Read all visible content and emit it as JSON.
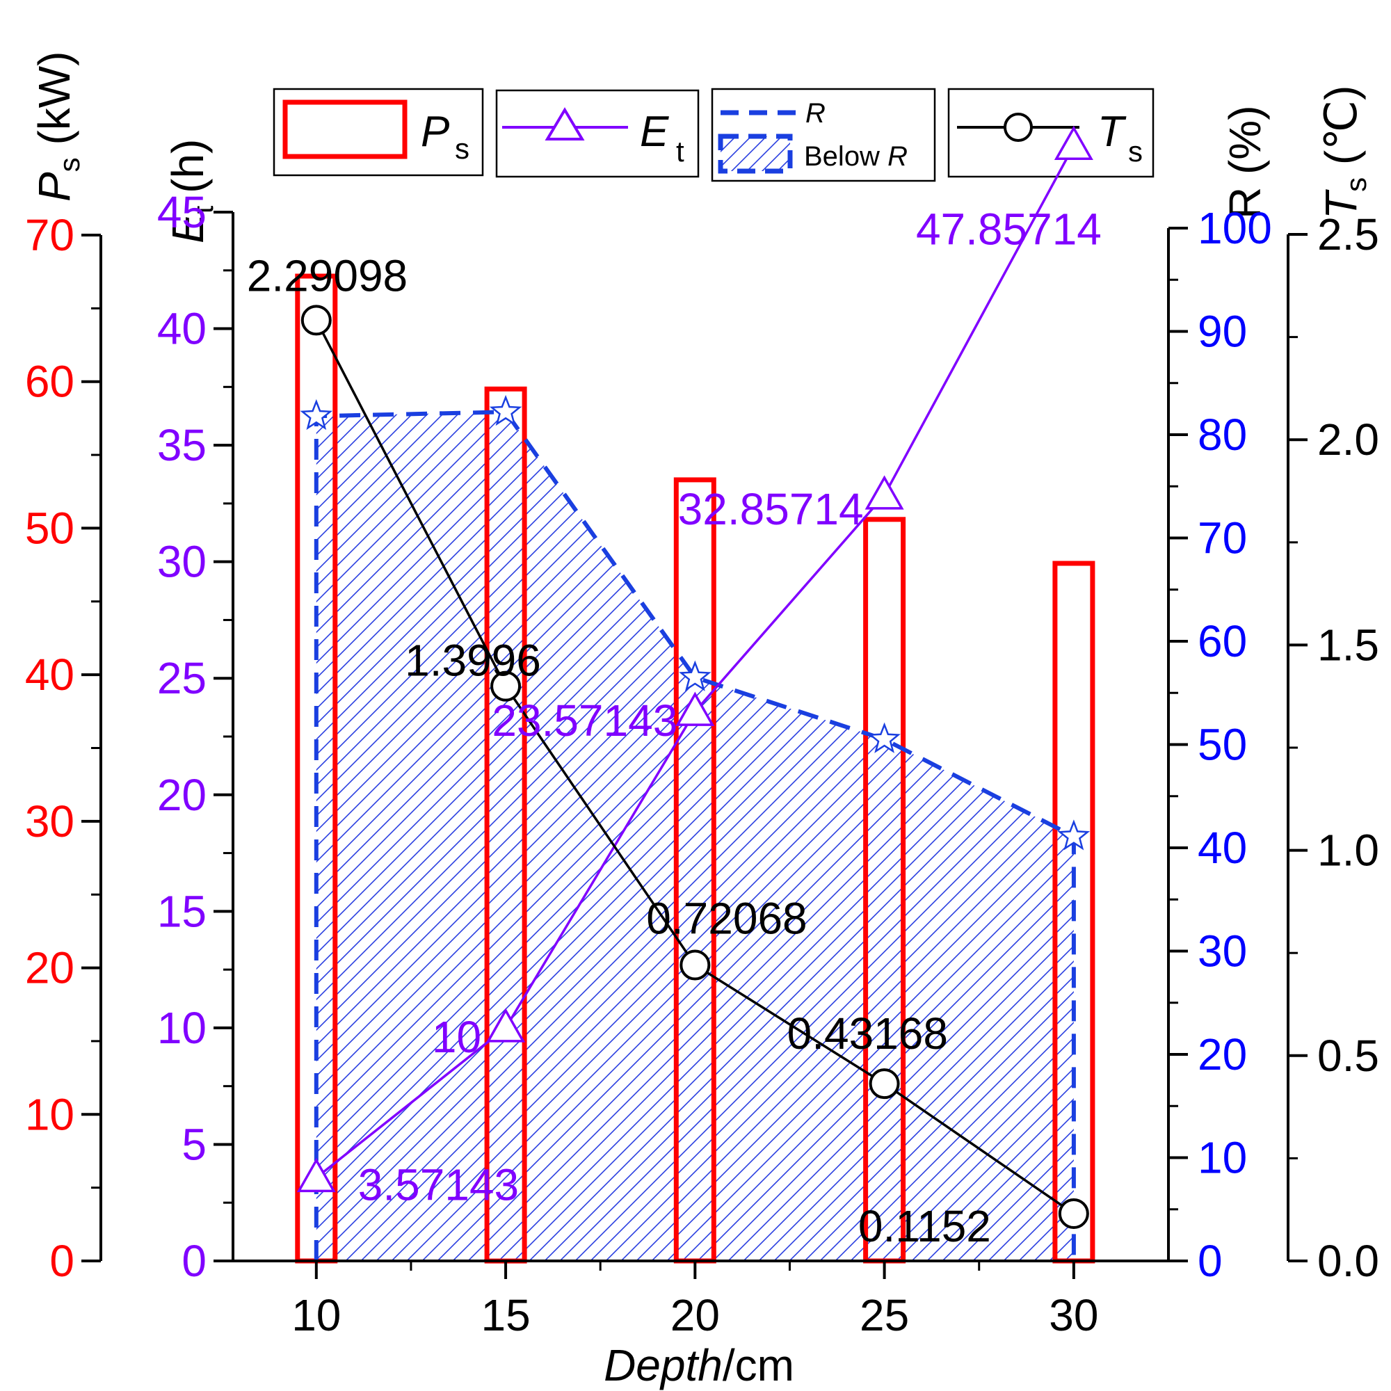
{
  "chart_data": {
    "type": "bar+line",
    "xlabel_italic": "Depth",
    "xlabel_unit": "/cm",
    "categories": [
      10,
      15,
      20,
      25,
      30
    ],
    "x_ticks": [
      "10",
      "15",
      "20",
      "25",
      "30"
    ],
    "xlim": [
      7.8,
      32.5
    ],
    "legend": [
      {
        "key": "Ps",
        "sym": "P",
        "sub": "s"
      },
      {
        "key": "Et",
        "sym": "E",
        "sub": "t"
      },
      {
        "key": "R",
        "sym": "R",
        "extra_label": "Below ",
        "extra_sym": "R"
      },
      {
        "key": "Ts",
        "sym": "T",
        "sub": "s"
      }
    ],
    "axes": {
      "Ps": {
        "sym": "P",
        "sub": "s",
        "unit": " (kW)",
        "color": "#ff0000",
        "min": 0,
        "max": 70,
        "ticks": [
          "0",
          "10",
          "20",
          "30",
          "40",
          "50",
          "60",
          "70"
        ]
      },
      "Et": {
        "sym": "E",
        "sub": "t",
        "unit": " (h)",
        "color": "#8000ff",
        "min": 0,
        "max": 45,
        "ticks": [
          "0",
          "5",
          "10",
          "15",
          "20",
          "25",
          "30",
          "35",
          "40",
          "45"
        ]
      },
      "R": {
        "label": "R (%)",
        "color": "#0000ff",
        "min": 0,
        "max": 100,
        "ticks": [
          "0",
          "10",
          "20",
          "30",
          "40",
          "50",
          "60",
          "70",
          "80",
          "90",
          "100"
        ]
      },
      "Ts": {
        "sym": "T",
        "sub": "s",
        "unit": " (℃)",
        "color": "#000000",
        "min": 0,
        "max": 2.5,
        "ticks": [
          "0.0",
          "0.5",
          "1.0",
          "1.5",
          "2.0",
          "2.5"
        ]
      }
    },
    "series": [
      {
        "name": "Ps",
        "type": "bar",
        "color": "#ff0000",
        "values": [
          67.2,
          59.5,
          53.3,
          50.6,
          47.6
        ]
      },
      {
        "name": "Et",
        "type": "line",
        "marker": "triangle",
        "color": "#8000ff",
        "values": [
          3.57143,
          10,
          23.57143,
          32.85714,
          47.85714
        ],
        "labels": [
          "3.57143",
          "10",
          "23.57143",
          "32.85714",
          "47.85714"
        ]
      },
      {
        "name": "R",
        "type": "dashed-area",
        "marker": "star",
        "color": "#1a3fe0",
        "values": [
          81.8,
          82.2,
          56.5,
          50.5,
          41.1
        ]
      },
      {
        "name": "Ts",
        "type": "line",
        "marker": "circle",
        "color": "#000000",
        "values": [
          2.29098,
          1.3996,
          0.72068,
          0.43168,
          0.1152
        ],
        "labels": [
          "2.29098",
          "1.3996",
          "0.72068",
          "0.43168",
          "0.1152"
        ]
      }
    ]
  }
}
